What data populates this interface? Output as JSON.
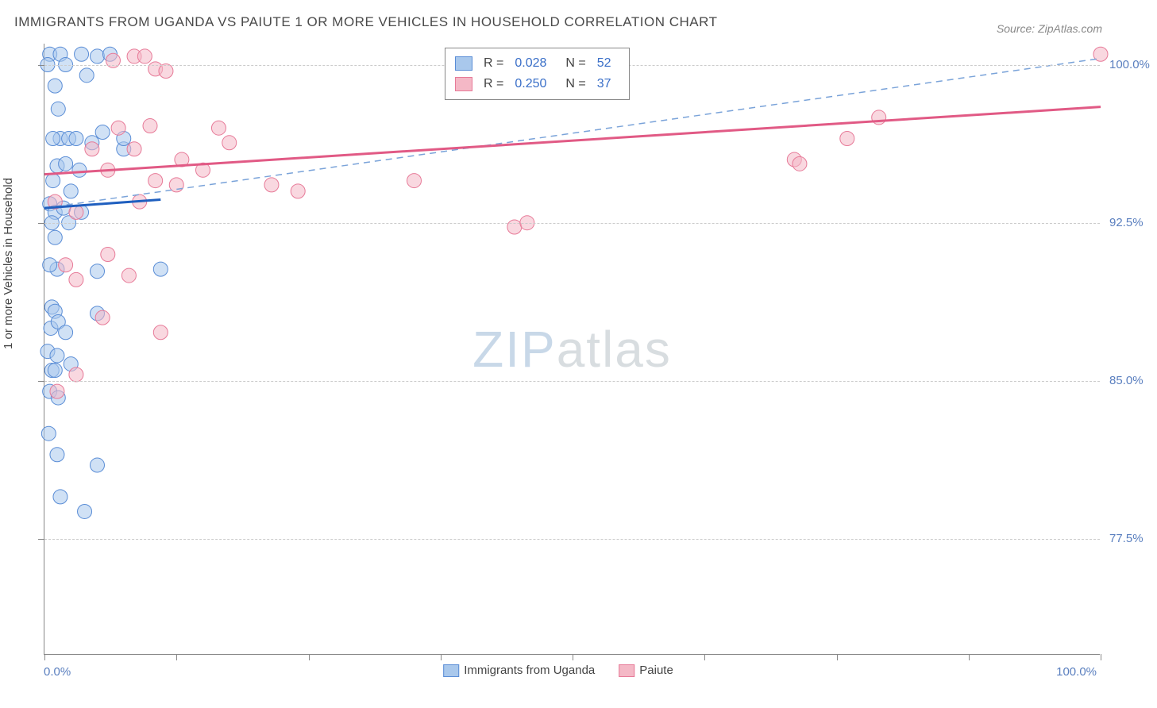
{
  "title": "IMMIGRANTS FROM UGANDA VS PAIUTE 1 OR MORE VEHICLES IN HOUSEHOLD CORRELATION CHART",
  "source": "Source: ZipAtlas.com",
  "watermark_zip": "ZIP",
  "watermark_atlas": "atlas",
  "y_axis_title": "1 or more Vehicles in Household",
  "chart": {
    "type": "scatter",
    "xlim": [
      0,
      100
    ],
    "ylim": [
      72,
      101
    ],
    "y_gridlines": [
      77.5,
      85.0,
      92.5,
      100.0
    ],
    "y_tick_labels": [
      "77.5%",
      "85.0%",
      "92.5%",
      "100.0%"
    ],
    "x_ticks": [
      0,
      12.5,
      25,
      37.5,
      50,
      62.5,
      75,
      87.5,
      100
    ],
    "x_min_label": "0.0%",
    "x_max_label": "100.0%",
    "grid_color": "#cccccc",
    "background_color": "#ffffff",
    "axis_color": "#888888",
    "series": [
      {
        "name": "Immigrants from Uganda",
        "r_label": "R =",
        "r_value": "0.028",
        "n_label": "N =",
        "n_value": "52",
        "fill": "#a9c8ec",
        "stroke": "#5a8dd6",
        "line_color": "#1f5fbf",
        "line_dash_color": "#7aa3d9",
        "marker_radius": 9,
        "marker_opacity": 0.55,
        "trend_solid": {
          "x1": 0,
          "y1": 93.2,
          "x2": 11,
          "y2": 93.6
        },
        "trend_dashed": {
          "x1": 0,
          "y1": 93.2,
          "x2": 100,
          "y2": 100.3
        },
        "points": [
          [
            0.5,
            100.5
          ],
          [
            1.5,
            100.5
          ],
          [
            3.5,
            100.5
          ],
          [
            5.0,
            100.4
          ],
          [
            6.2,
            100.5
          ],
          [
            1.0,
            99.0
          ],
          [
            1.3,
            97.9
          ],
          [
            1.5,
            96.5
          ],
          [
            0.8,
            96.5
          ],
          [
            2.3,
            96.5
          ],
          [
            3.0,
            96.5
          ],
          [
            4.5,
            96.3
          ],
          [
            5.5,
            96.8
          ],
          [
            7.5,
            96.0
          ],
          [
            7.5,
            96.5
          ],
          [
            1.2,
            95.2
          ],
          [
            2.0,
            95.3
          ],
          [
            3.3,
            95.0
          ],
          [
            0.8,
            94.5
          ],
          [
            2.5,
            94.0
          ],
          [
            0.5,
            93.4
          ],
          [
            1.0,
            93.0
          ],
          [
            1.8,
            93.2
          ],
          [
            3.5,
            93.0
          ],
          [
            0.7,
            92.5
          ],
          [
            2.3,
            92.5
          ],
          [
            1.0,
            91.8
          ],
          [
            1.2,
            90.3
          ],
          [
            0.5,
            90.5
          ],
          [
            5.0,
            90.2
          ],
          [
            11.0,
            90.3
          ],
          [
            0.7,
            88.5
          ],
          [
            1.0,
            88.3
          ],
          [
            5.0,
            88.2
          ],
          [
            0.6,
            87.5
          ],
          [
            1.3,
            87.8
          ],
          [
            2.0,
            87.3
          ],
          [
            0.3,
            86.4
          ],
          [
            1.2,
            86.2
          ],
          [
            0.7,
            85.5
          ],
          [
            1.0,
            85.5
          ],
          [
            2.5,
            85.8
          ],
          [
            0.5,
            84.5
          ],
          [
            1.3,
            84.2
          ],
          [
            0.4,
            82.5
          ],
          [
            1.2,
            81.5
          ],
          [
            5.0,
            81.0
          ],
          [
            1.5,
            79.5
          ],
          [
            3.8,
            78.8
          ],
          [
            0.3,
            100.0
          ],
          [
            2.0,
            100.0
          ],
          [
            4.0,
            99.5
          ]
        ]
      },
      {
        "name": "Paiute",
        "r_label": "R =",
        "r_value": "0.250",
        "n_label": "N =",
        "n_value": "37",
        "fill": "#f4b8c6",
        "stroke": "#e77a98",
        "line_color": "#e15a85",
        "marker_radius": 9,
        "marker_opacity": 0.55,
        "trend_solid": {
          "x1": 0,
          "y1": 94.8,
          "x2": 100,
          "y2": 98.0
        },
        "points": [
          [
            6.5,
            100.2
          ],
          [
            8.5,
            100.4
          ],
          [
            9.5,
            100.4
          ],
          [
            10.5,
            99.8
          ],
          [
            11.5,
            99.7
          ],
          [
            7.0,
            97.0
          ],
          [
            10.0,
            97.1
          ],
          [
            16.5,
            97.0
          ],
          [
            8.5,
            96.0
          ],
          [
            13.0,
            95.5
          ],
          [
            17.5,
            96.3
          ],
          [
            10.5,
            94.5
          ],
          [
            12.5,
            94.3
          ],
          [
            21.5,
            94.3
          ],
          [
            24.0,
            94.0
          ],
          [
            35.0,
            94.5
          ],
          [
            44.5,
            92.3
          ],
          [
            45.7,
            92.5
          ],
          [
            3.0,
            93.0
          ],
          [
            6.0,
            91.0
          ],
          [
            3.0,
            89.8
          ],
          [
            8.0,
            90.0
          ],
          [
            5.5,
            88.0
          ],
          [
            11.0,
            87.3
          ],
          [
            3.0,
            85.3
          ],
          [
            1.2,
            84.5
          ],
          [
            71.0,
            95.5
          ],
          [
            71.5,
            95.3
          ],
          [
            76.0,
            96.5
          ],
          [
            79.0,
            97.5
          ],
          [
            100.0,
            100.5
          ],
          [
            4.5,
            96.0
          ],
          [
            6.0,
            95.0
          ],
          [
            9.0,
            93.5
          ],
          [
            15.0,
            95.0
          ],
          [
            1.0,
            93.5
          ],
          [
            2.0,
            90.5
          ]
        ]
      }
    ]
  },
  "legend_bottom": [
    {
      "label": "Immigrants from Uganda",
      "fill": "#a9c8ec",
      "stroke": "#5a8dd6"
    },
    {
      "label": "Paiute",
      "fill": "#f4b8c6",
      "stroke": "#e77a98"
    }
  ]
}
